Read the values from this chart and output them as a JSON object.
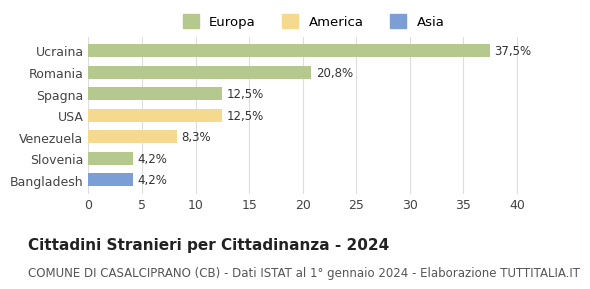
{
  "categories": [
    "Ucraina",
    "Romania",
    "Spagna",
    "USA",
    "Venezuela",
    "Slovenia",
    "Bangladesh"
  ],
  "values": [
    37.5,
    20.8,
    12.5,
    12.5,
    8.3,
    4.2,
    4.2
  ],
  "labels": [
    "37,5%",
    "20,8%",
    "12,5%",
    "12,5%",
    "8,3%",
    "4,2%",
    "4,2%"
  ],
  "colors": [
    "#b5c98e",
    "#b5c98e",
    "#b5c98e",
    "#f5d98e",
    "#f5d98e",
    "#b5c98e",
    "#7b9fd4"
  ],
  "legend": [
    {
      "label": "Europa",
      "color": "#b5c98e"
    },
    {
      "label": "America",
      "color": "#f5d98e"
    },
    {
      "label": "Asia",
      "color": "#7b9fd4"
    }
  ],
  "xlim": [
    0,
    42
  ],
  "xticks": [
    0,
    5,
    10,
    15,
    20,
    25,
    30,
    35,
    40
  ],
  "title": "Cittadini Stranieri per Cittadinanza - 2024",
  "subtitle": "COMUNE DI CASALCIPRANO (CB) - Dati ISTAT al 1° gennaio 2024 - Elaborazione TUTTITALIA.IT",
  "title_fontsize": 11,
  "subtitle_fontsize": 8.5,
  "background_color": "#ffffff",
  "grid_color": "#dddddd",
  "bar_label_fontsize": 8.5,
  "tick_label_fontsize": 9
}
